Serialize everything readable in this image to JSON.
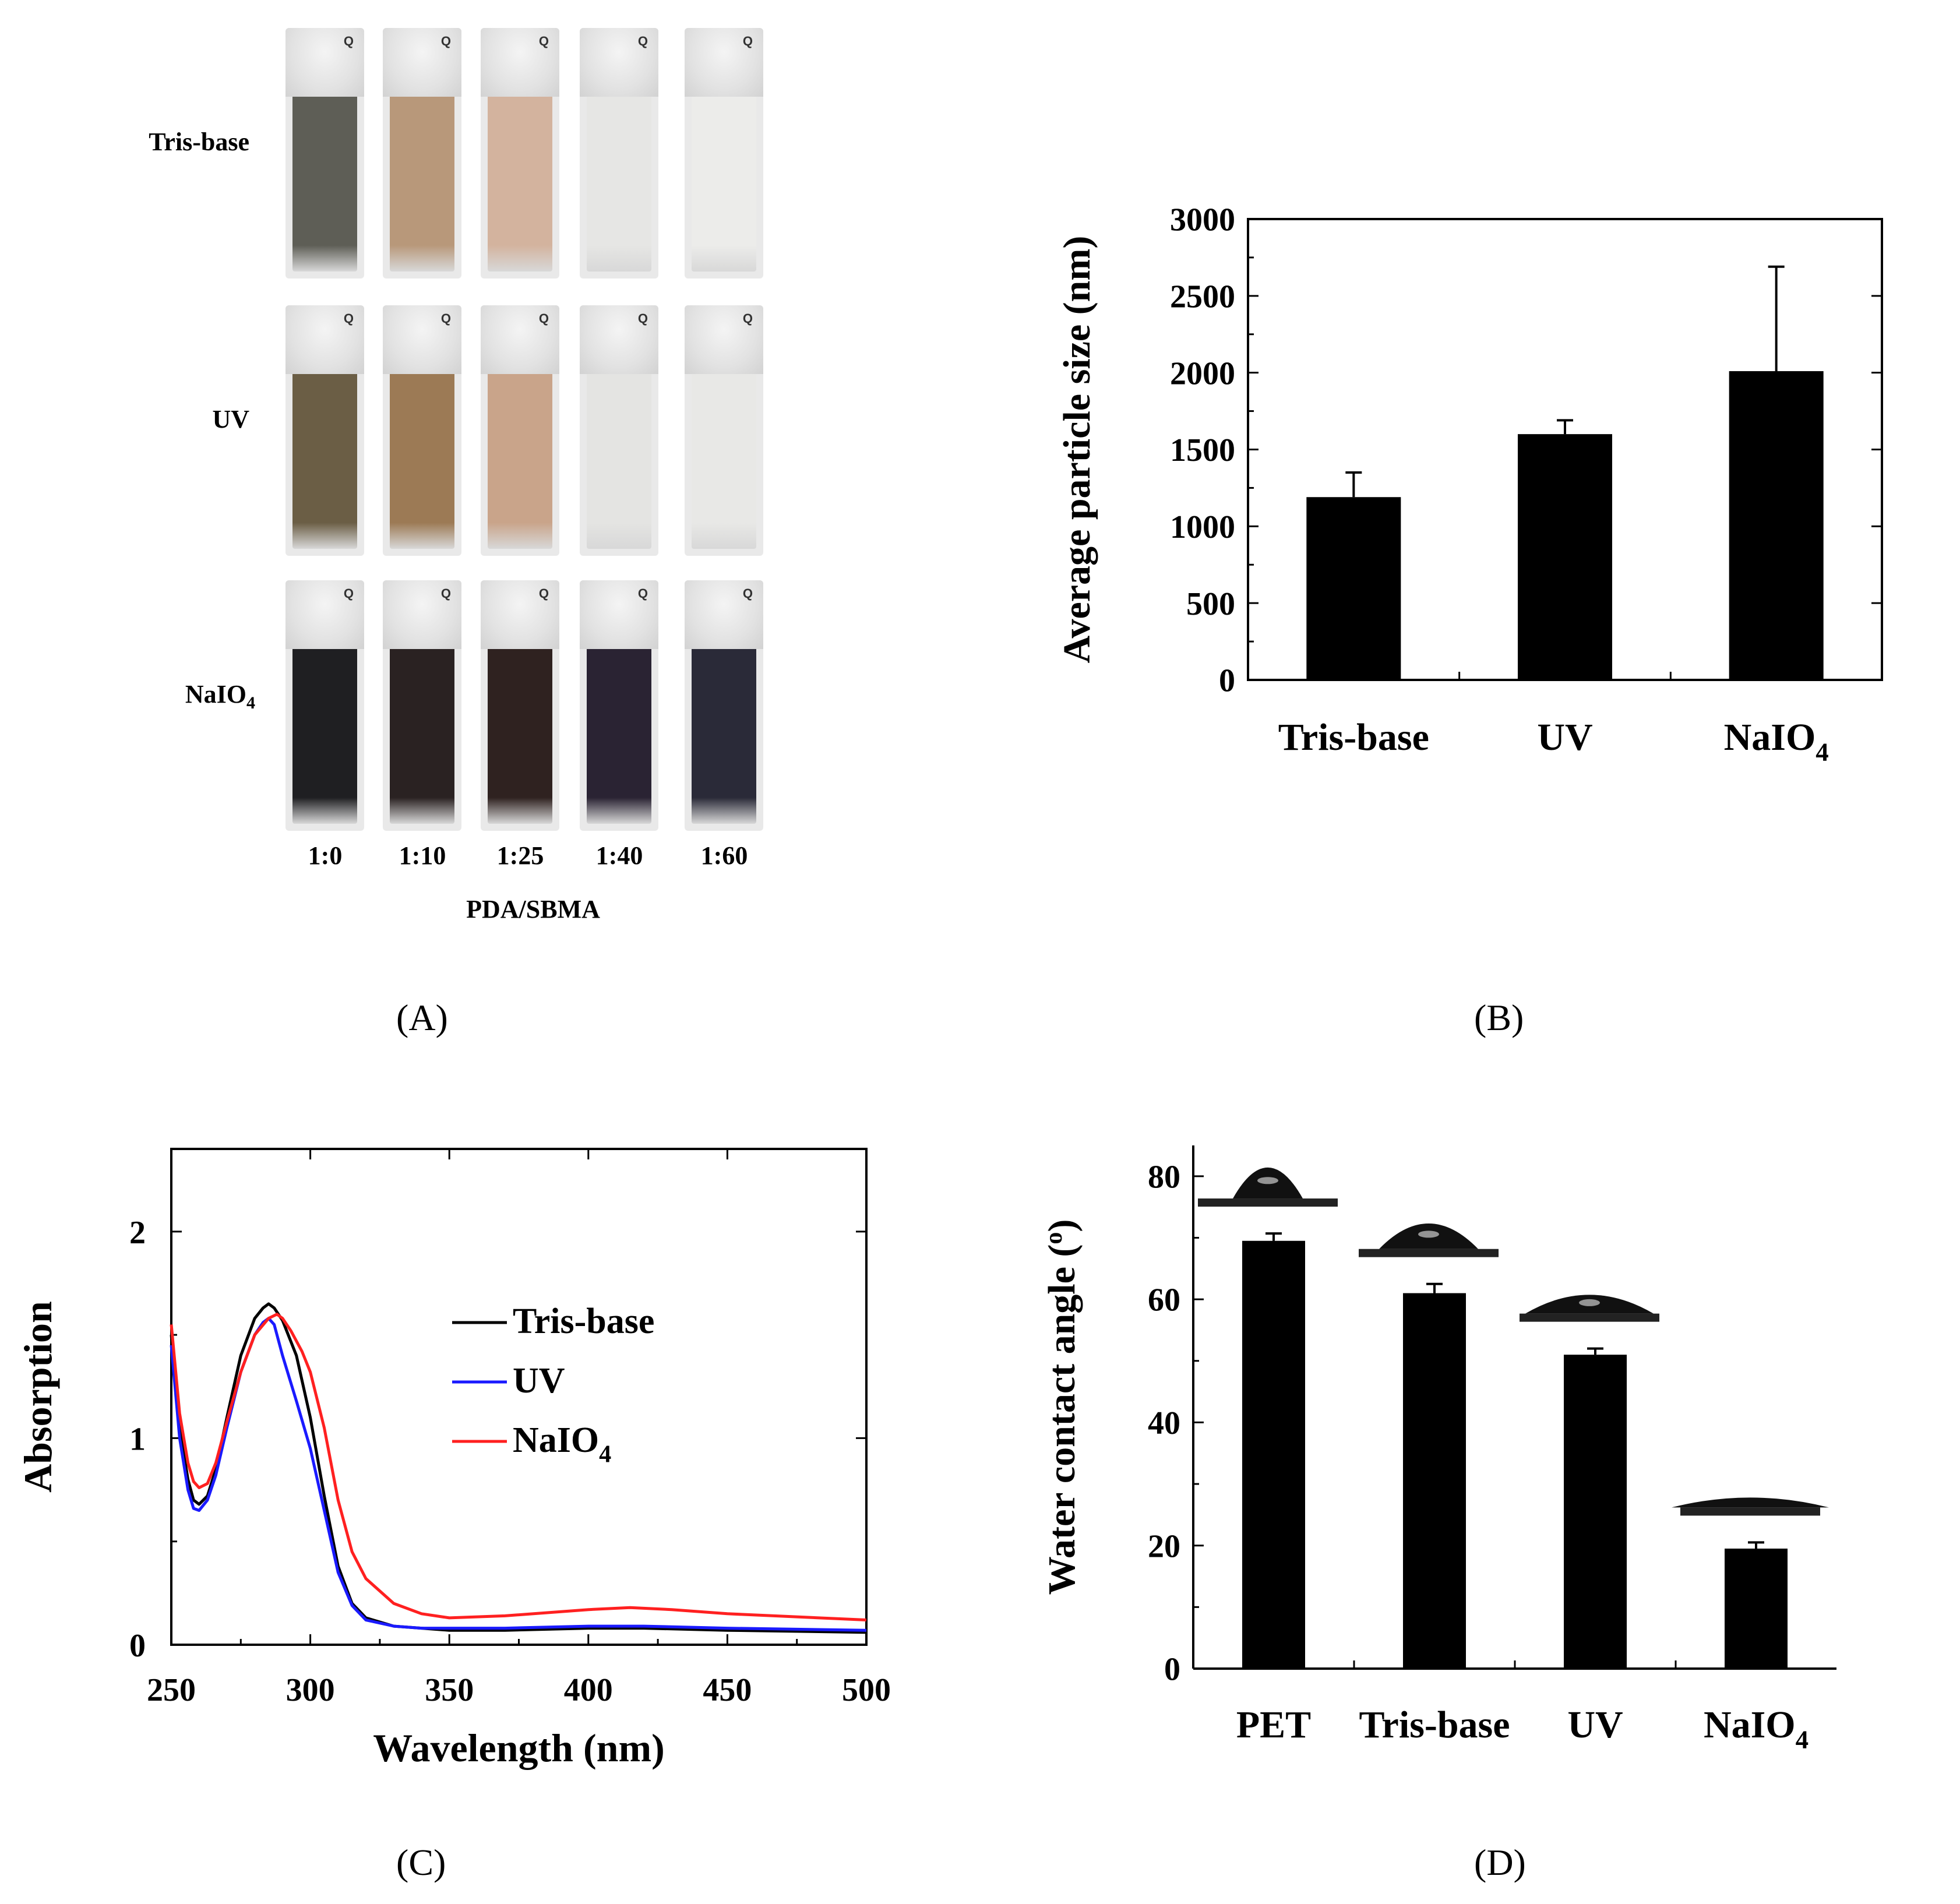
{
  "panels": {
    "A": "(A)",
    "B": "(B)",
    "C": "(C)",
    "D": "(D)"
  },
  "photo_panel": {
    "rows": [
      {
        "label": "Tris-base",
        "colors": [
          "#5e5e56",
          "#b8987a",
          "#d3b39e",
          "#e6e6e4",
          "#ececea"
        ]
      },
      {
        "label": "UV",
        "colors": [
          "#6b5e45",
          "#9c7a55",
          "#c9a48a",
          "#e4e4e2",
          "#e8e8e6"
        ]
      },
      {
        "label": "NaIO",
        "sub": "4",
        "colors": [
          "#1f1f22",
          "#2a2222",
          "#2f2220",
          "#2a2333",
          "#2a2a38"
        ]
      }
    ],
    "vial_mark": "Q",
    "ratios": [
      "1:0",
      "1:10",
      "1:25",
      "1:40",
      "1:60"
    ],
    "xlabel": "PDA/SBMA"
  },
  "chart_data": [
    {
      "id": "B",
      "type": "bar",
      "categories": [
        "Tris-base",
        "UV",
        "NaIO4"
      ],
      "category_labels": [
        {
          "text": "Tris-base",
          "sub": ""
        },
        {
          "text": "UV",
          "sub": ""
        },
        {
          "text": "NaIO",
          "sub": "4"
        }
      ],
      "values": [
        1190,
        1600,
        2010
      ],
      "errors": [
        160,
        90,
        680
      ],
      "ylabel": "Average particle size (nm)",
      "ylim": [
        0,
        3000
      ],
      "yticks": [
        "0",
        "500",
        "1000",
        "1500",
        "2000",
        "2500",
        "3000"
      ],
      "bar_color": "#000000"
    },
    {
      "id": "C",
      "type": "line",
      "xlabel": "Wavelength (nm)",
      "ylabel": "Absorption",
      "xlim": [
        250,
        500
      ],
      "ylim": [
        0,
        2.4
      ],
      "xticks": [
        "250",
        "300",
        "350",
        "400",
        "450",
        "500"
      ],
      "yticks": [
        "0",
        "1",
        "2"
      ],
      "legend": [
        {
          "text": "Tris-base",
          "sub": ""
        },
        {
          "text": "UV",
          "sub": ""
        },
        {
          "text": "NaIO",
          "sub": "4"
        }
      ],
      "series": [
        {
          "name": "Tris-base",
          "color": "#000000",
          "x": [
            250,
            253,
            256,
            258,
            260,
            263,
            266,
            270,
            275,
            280,
            283,
            285,
            287,
            290,
            295,
            300,
            305,
            310,
            315,
            320,
            330,
            340,
            350,
            370,
            400,
            420,
            450,
            500
          ],
          "y": [
            1.5,
            1.05,
            0.8,
            0.7,
            0.68,
            0.72,
            0.85,
            1.1,
            1.4,
            1.58,
            1.63,
            1.65,
            1.63,
            1.57,
            1.4,
            1.1,
            0.72,
            0.38,
            0.2,
            0.13,
            0.09,
            0.08,
            0.07,
            0.07,
            0.08,
            0.08,
            0.07,
            0.06
          ]
        },
        {
          "name": "UV",
          "color": "#1a1aff",
          "x": [
            250,
            253,
            256,
            258,
            260,
            263,
            266,
            270,
            275,
            280,
            283,
            285,
            287,
            290,
            295,
            300,
            305,
            310,
            315,
            320,
            330,
            340,
            350,
            370,
            400,
            420,
            450,
            500
          ],
          "y": [
            1.45,
            1.0,
            0.75,
            0.66,
            0.65,
            0.7,
            0.82,
            1.05,
            1.32,
            1.5,
            1.56,
            1.58,
            1.55,
            1.4,
            1.18,
            0.95,
            0.65,
            0.35,
            0.19,
            0.12,
            0.09,
            0.08,
            0.08,
            0.08,
            0.09,
            0.09,
            0.08,
            0.07
          ]
        },
        {
          "name": "NaIO4",
          "color": "#ff2020",
          "x": [
            250,
            253,
            256,
            258,
            260,
            263,
            266,
            270,
            275,
            280,
            285,
            288,
            290,
            293,
            297,
            300,
            305,
            310,
            315,
            320,
            330,
            340,
            350,
            370,
            400,
            415,
            430,
            450,
            500
          ],
          "y": [
            1.55,
            1.12,
            0.88,
            0.79,
            0.76,
            0.78,
            0.88,
            1.08,
            1.32,
            1.5,
            1.58,
            1.6,
            1.58,
            1.52,
            1.42,
            1.32,
            1.05,
            0.7,
            0.45,
            0.32,
            0.2,
            0.15,
            0.13,
            0.14,
            0.17,
            0.18,
            0.17,
            0.15,
            0.12
          ]
        }
      ]
    },
    {
      "id": "D",
      "type": "bar",
      "categories": [
        "PET",
        "Tris-base",
        "UV",
        "NaIO4"
      ],
      "category_labels": [
        {
          "text": "PET",
          "sub": ""
        },
        {
          "text": "Tris-base",
          "sub": ""
        },
        {
          "text": "UV",
          "sub": ""
        },
        {
          "text": "NaIO",
          "sub": "4"
        }
      ],
      "values": [
        69.5,
        61,
        51,
        19.5
      ],
      "errors": [
        1.2,
        1.5,
        1.0,
        1.0
      ],
      "ylabel": "Water contact angle (°)",
      "ylabel_text": "Water contact angle (",
      "ylabel_sup": "o",
      "ylabel_end": ")",
      "ylim": [
        0,
        85
      ],
      "yticks": [
        "0",
        "20",
        "40",
        "60",
        "80"
      ],
      "bar_color": "#000000"
    }
  ]
}
